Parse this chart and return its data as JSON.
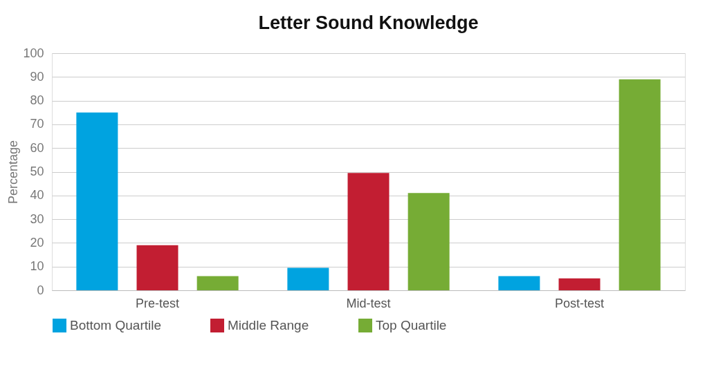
{
  "chart_data": {
    "type": "bar",
    "title": "Letter Sound Knowledge",
    "ylabel": "Percentage",
    "categories": [
      "Pre-test",
      "Mid-test",
      "Post-test"
    ],
    "series": [
      {
        "name": "Bottom Quartile",
        "color": "#00a3e0",
        "values": [
          75,
          9.5,
          6
        ]
      },
      {
        "name": "Middle Range",
        "color": "#c21e32",
        "values": [
          19,
          49.5,
          5
        ]
      },
      {
        "name": "Top Quartile",
        "color": "#76ac35",
        "values": [
          6,
          41,
          89
        ]
      }
    ],
    "ylim": [
      0,
      100
    ],
    "yticks": [
      0,
      10,
      20,
      30,
      40,
      50,
      60,
      70,
      80,
      90,
      100
    ],
    "grid": "y",
    "legend": "bottom"
  }
}
